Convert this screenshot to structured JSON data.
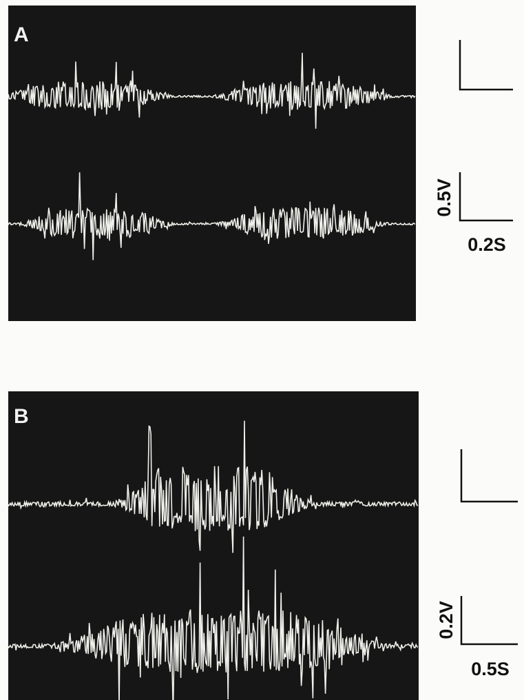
{
  "panels": [
    {
      "label": "A",
      "voltage": "0.5V",
      "time": "0.2S"
    },
    {
      "label": "B",
      "voltage": "0.2V",
      "time": "0.5S"
    }
  ]
}
